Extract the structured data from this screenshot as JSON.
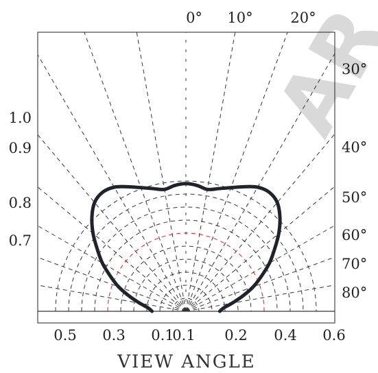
{
  "chart_data": {
    "type": "polar",
    "xlabel": "VIEW ANGLE",
    "top_angle_labels": [
      "0°",
      "10°",
      "20°"
    ],
    "right_angle_labels": [
      "30°",
      "40°",
      "50°",
      "60°",
      "70°",
      "80°"
    ],
    "left_tick_labels": [
      "1.0",
      "0.9",
      "0.8",
      "0.7"
    ],
    "bottom_tick_labels": [
      "0.5",
      "0.3",
      "0.1",
      "0.1",
      "0.2",
      "0.4",
      "0.6"
    ],
    "radial_gridlines": [
      0.1,
      0.2,
      0.3,
      0.4,
      0.5,
      0.6,
      0.7,
      0.8,
      0.9,
      1.0
    ],
    "angular_gridlines_deg": [
      -80,
      -70,
      -60,
      -50,
      -40,
      -30,
      -20,
      -10,
      0,
      10,
      20,
      30,
      40,
      50,
      60,
      70,
      80
    ],
    "highlighted_radius": 0.6,
    "grid": true,
    "series": [
      {
        "points": [
          {
            "angle": 0,
            "r": 0.98
          },
          {
            "angle": 5,
            "r": 0.97
          },
          {
            "angle": 10,
            "r": 0.95
          },
          {
            "angle": 15,
            "r": 0.975
          },
          {
            "angle": 20,
            "r": 1.01
          },
          {
            "angle": 25,
            "r": 1.055
          },
          {
            "angle": 30,
            "r": 1.1
          },
          {
            "angle": 35,
            "r": 1.115
          },
          {
            "angle": 40,
            "r": 1.09
          },
          {
            "angle": 45,
            "r": 1.02
          },
          {
            "angle": 50,
            "r": 0.93
          },
          {
            "angle": 55,
            "r": 0.83
          },
          {
            "angle": 60,
            "r": 0.74
          },
          {
            "angle": 65,
            "r": 0.64
          },
          {
            "angle": 70,
            "r": 0.55
          },
          {
            "angle": 75,
            "r": 0.45
          },
          {
            "angle": 80,
            "r": 0.36
          },
          {
            "angle": 85,
            "r": 0.29
          },
          {
            "angle": 90,
            "r": 0.26
          }
        ]
      }
    ]
  },
  "watermark": "AR"
}
